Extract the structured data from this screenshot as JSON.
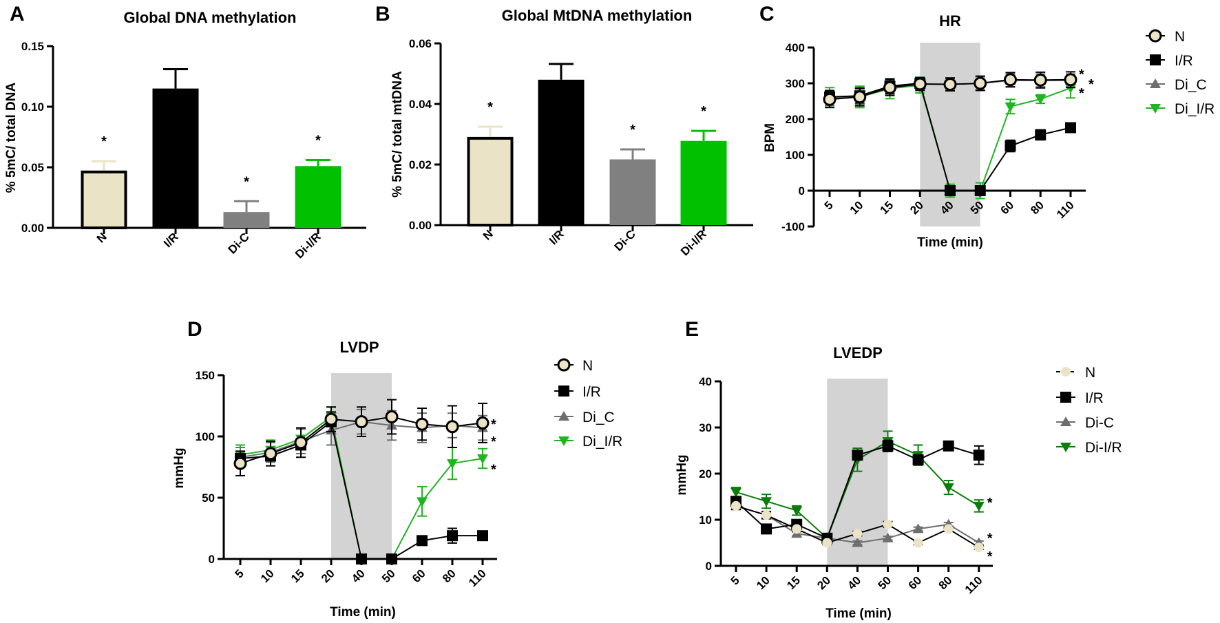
{
  "chart_data": [
    {
      "panel": "A",
      "type": "bar",
      "title": "Global DNA methylation",
      "ylabel": "% 5mC/ total DNA",
      "xlabel": "",
      "ylim": [
        0,
        0.15
      ],
      "yticks": [
        "0.00",
        "0.05",
        "0.10",
        "0.15"
      ],
      "ytick_values": [
        0,
        0.05,
        0.1,
        0.15
      ],
      "categories": [
        "N",
        "I/R",
        "Di-C",
        "Di-I/R"
      ],
      "values": [
        0.047,
        0.115,
        0.013,
        0.051
      ],
      "errors": [
        0.008,
        0.016,
        0.009,
        0.005
      ],
      "significant": [
        true,
        false,
        true,
        true
      ],
      "star": "*",
      "colors": [
        "#ebe3c6",
        "#000000",
        "#808080",
        "#00c000"
      ]
    },
    {
      "panel": "B",
      "type": "bar",
      "title": "Global MtDNA methylation",
      "ylabel": "% 5mC/ total mtDNA",
      "xlabel": "",
      "ylim": [
        0,
        0.06
      ],
      "yticks": [
        "0.00",
        "0.02",
        "0.04",
        "0.06"
      ],
      "ytick_values": [
        0,
        0.02,
        0.04,
        0.06
      ],
      "categories": [
        "N",
        "I/R",
        "Di-C",
        "Di-I/R"
      ],
      "values": [
        0.029,
        0.048,
        0.0217,
        0.0278
      ],
      "errors": [
        0.0035,
        0.0052,
        0.0033,
        0.0033
      ],
      "significant": [
        true,
        false,
        true,
        true
      ],
      "star": "*",
      "colors": [
        "#ebe3c6",
        "#000000",
        "#808080",
        "#00c000"
      ]
    },
    {
      "panel": "C",
      "type": "line",
      "title": "HR",
      "ylabel": "BPM",
      "xlabel": "Time (min)",
      "ylim": [
        -100,
        400
      ],
      "yticks": [
        "-100",
        "0",
        "100",
        "200",
        "300",
        "400"
      ],
      "ytick_values": [
        -100,
        0,
        100,
        200,
        300,
        400
      ],
      "x": [
        "5",
        "10",
        "15",
        "20",
        "40",
        "50",
        "60",
        "80",
        "110"
      ],
      "shaded_range": [
        "20",
        "50"
      ],
      "series": [
        {
          "name": "N",
          "marker": "circle",
          "color": "#000000",
          "fill": "#ebe3c6",
          "values": [
            255,
            262,
            288,
            298,
            297,
            300,
            310,
            309,
            310
          ],
          "errors": [
            22,
            25,
            22,
            18,
            18,
            20,
            20,
            22,
            22
          ]
        },
        {
          "name": "I/R",
          "marker": "square",
          "color": "#000000",
          "fill": "#000000",
          "values": [
            262,
            265,
            292,
            300,
            0,
            0,
            125,
            156,
            176
          ],
          "errors": [
            18,
            20,
            20,
            15,
            12,
            10,
            16,
            14,
            12
          ]
        },
        {
          "name": "Di_C",
          "marker": "triangle-up",
          "color": "#6e6e6e",
          "fill": "#6e6e6e",
          "values": [
            258,
            263,
            290,
            298,
            297,
            300,
            308,
            308,
            308
          ],
          "errors": [
            20,
            22,
            20,
            16,
            16,
            18,
            18,
            18,
            18
          ]
        },
        {
          "name": "Di_I/R",
          "marker": "triangle-down",
          "color": "#1fb51f",
          "fill": "#1fb51f",
          "values": [
            260,
            262,
            285,
            295,
            0,
            0,
            235,
            256,
            287
          ],
          "errors": [
            28,
            30,
            28,
            22,
            18,
            22,
            20,
            12,
            28
          ]
        }
      ],
      "stars": [
        {
          "x": "110",
          "y": 336,
          "text": "*"
        },
        {
          "x": "110",
          "y": 308,
          "text": "*"
        },
        {
          "x": "110",
          "y": 283,
          "text": "*"
        }
      ]
    },
    {
      "panel": "D",
      "type": "line",
      "title": "LVDP",
      "ylabel": "mmHg",
      "xlabel": "Time (min)",
      "ylim": [
        0,
        150
      ],
      "yticks": [
        "0",
        "50",
        "100",
        "150"
      ],
      "ytick_values": [
        0,
        50,
        100,
        150
      ],
      "x": [
        "5",
        "10",
        "15",
        "20",
        "40",
        "50",
        "60",
        "80",
        "110"
      ],
      "shaded_range": [
        "20",
        "50"
      ],
      "series": [
        {
          "name": "N",
          "marker": "circle",
          "color": "#000000",
          "fill": "#ebe3c6",
          "values": [
            78,
            86,
            95,
            114,
            112,
            116,
            110,
            108,
            111
          ],
          "errors": [
            10,
            10,
            12,
            10,
            12,
            14,
            13,
            17,
            16
          ]
        },
        {
          "name": "I/R",
          "marker": "square",
          "color": "#000000",
          "fill": "#000000",
          "values": [
            82,
            84,
            93,
            112,
            0,
            0,
            15,
            19,
            19
          ],
          "errors": [
            4,
            3,
            3,
            8,
            1,
            1,
            2,
            6,
            3
          ]
        },
        {
          "name": "Di_C",
          "marker": "triangle-up",
          "color": "#6e6e6e",
          "fill": "#6e6e6e",
          "values": [
            83,
            87,
            96,
            105,
            112,
            109,
            107,
            109,
            107
          ],
          "errors": [
            8,
            8,
            10,
            12,
            10,
            12,
            12,
            10,
            10
          ]
        },
        {
          "name": "Di_I/R",
          "marker": "triangle-down",
          "color": "#1fb51f",
          "fill": "#1fb51f",
          "values": [
            85,
            89,
            98,
            116,
            0,
            0,
            47,
            78,
            82
          ],
          "errors": [
            8,
            8,
            8,
            8,
            0,
            0,
            12,
            13,
            8
          ]
        }
      ],
      "stars": [
        {
          "x": "110",
          "y": 113,
          "text": "*"
        },
        {
          "x": "110",
          "y": 99,
          "text": "*"
        },
        {
          "x": "110",
          "y": 76,
          "text": "*"
        }
      ]
    },
    {
      "panel": "E",
      "type": "line",
      "title": "LVEDP",
      "ylabel": "mmHg",
      "xlabel": "Time (min)",
      "ylim": [
        0,
        40
      ],
      "yticks": [
        "0",
        "10",
        "20",
        "30",
        "40"
      ],
      "ytick_values": [
        0,
        10,
        20,
        30,
        40
      ],
      "x": [
        "5",
        "10",
        "15",
        "20",
        "40",
        "50",
        "60",
        "80",
        "110"
      ],
      "shaded_range": [
        "20",
        "50"
      ],
      "series": [
        {
          "name": "N",
          "marker": "dot",
          "color": "#000000",
          "fill": "#ebe3c6",
          "values": [
            13,
            11,
            8,
            5,
            7,
            9,
            5,
            8,
            4
          ],
          "errors": [
            0.8,
            0.8,
            0.6,
            0.4,
            0.5,
            0.6,
            0.4,
            0.5,
            0.4
          ]
        },
        {
          "name": "I/R",
          "marker": "square",
          "color": "#000000",
          "fill": "#000000",
          "values": [
            14,
            8,
            9,
            6,
            24,
            26,
            23,
            26,
            24
          ],
          "errors": [
            0.6,
            0.6,
            0.6,
            0.5,
            1.0,
            1.2,
            1.0,
            1.0,
            2.0
          ]
        },
        {
          "name": "Di-C",
          "marker": "triangle-up",
          "color": "#6e6e6e",
          "fill": "#6e6e6e",
          "values": [
            13,
            11,
            7,
            6,
            5,
            6,
            8,
            9,
            5
          ],
          "errors": [
            0.5,
            0.5,
            0.5,
            0.4,
            0.4,
            0.4,
            0.4,
            0.4,
            0.4
          ]
        },
        {
          "name": "Di-I/R",
          "marker": "triangle-down",
          "color": "#0a7d0a",
          "fill": "#0a7d0a",
          "values": [
            16,
            14,
            12,
            6,
            23,
            27,
            24,
            17,
            13
          ],
          "errors": [
            1.0,
            1.5,
            1.0,
            0.5,
            2.5,
            2.2,
            2.2,
            1.5,
            1.3
          ]
        }
      ],
      "stars": [
        {
          "x": "110",
          "y": 14.5,
          "text": "*"
        },
        {
          "x": "110",
          "y": 6.8,
          "text": "*"
        },
        {
          "x": "110",
          "y": 2.8,
          "text": "*"
        }
      ]
    }
  ]
}
